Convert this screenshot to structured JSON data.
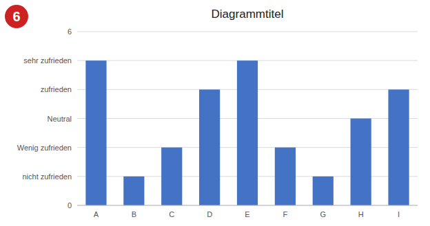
{
  "chart_data": {
    "type": "bar",
    "title": "Diagrammtitel",
    "categories": [
      "A",
      "B",
      "C",
      "D",
      "E",
      "F",
      "G",
      "H",
      "I"
    ],
    "values": [
      5,
      1,
      2,
      4,
      5,
      2,
      1,
      3,
      4
    ],
    "color": "#4472C4",
    "ylim": [
      0,
      6
    ],
    "yticks": [
      0,
      {
        "value": 1,
        "label": "nicht zufrieden"
      },
      {
        "value": 2,
        "label": "Wenig zufrieden"
      },
      {
        "value": 3,
        "label": "Neutral"
      },
      {
        "value": 4,
        "label": "zufrieden"
      },
      {
        "value": 5,
        "label": "sehr zufrieden"
      },
      6
    ],
    "grid": true,
    "annotations": [
      "6"
    ]
  }
}
